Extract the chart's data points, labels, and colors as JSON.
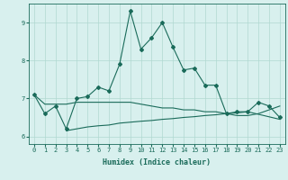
{
  "xlabel": "Humidex (Indice chaleur)",
  "ylabel": "",
  "background_color": "#d8f0ee",
  "line_color": "#1a6b5a",
  "x_values": [
    0,
    1,
    2,
    3,
    4,
    5,
    6,
    7,
    8,
    9,
    10,
    11,
    12,
    13,
    14,
    15,
    16,
    17,
    18,
    19,
    20,
    21,
    22,
    23
  ],
  "line1_y": [
    7.1,
    6.6,
    6.8,
    6.2,
    7.0,
    7.05,
    7.3,
    7.2,
    7.9,
    9.3,
    8.3,
    8.6,
    9.0,
    8.35,
    7.75,
    7.8,
    7.35,
    7.35,
    6.6,
    6.65,
    6.65,
    6.9,
    6.8,
    6.5
  ],
  "line2_y": [
    7.1,
    6.85,
    6.85,
    6.85,
    6.9,
    6.9,
    6.9,
    6.9,
    6.9,
    6.9,
    6.85,
    6.8,
    6.75,
    6.75,
    6.7,
    6.7,
    6.65,
    6.65,
    6.6,
    6.55,
    6.55,
    6.6,
    6.7,
    6.8
  ],
  "line3_y": [
    null,
    null,
    null,
    6.15,
    6.2,
    6.25,
    6.28,
    6.3,
    6.35,
    null,
    6.4,
    6.42,
    6.45,
    6.47,
    6.5,
    6.52,
    6.55,
    6.57,
    6.6,
    6.62,
    6.65,
    null,
    null,
    6.45
  ],
  "ylim": [
    5.8,
    9.5
  ],
  "xlim": [
    -0.5,
    23.5
  ],
  "yticks": [
    6,
    7,
    8,
    9
  ],
  "xticks": [
    0,
    1,
    2,
    3,
    4,
    5,
    6,
    7,
    8,
    9,
    10,
    11,
    12,
    13,
    14,
    15,
    16,
    17,
    18,
    19,
    20,
    21,
    22,
    23
  ],
  "grid_color": "#b0d8d0",
  "marker": "D",
  "marker_size": 2,
  "linewidth": 0.8
}
